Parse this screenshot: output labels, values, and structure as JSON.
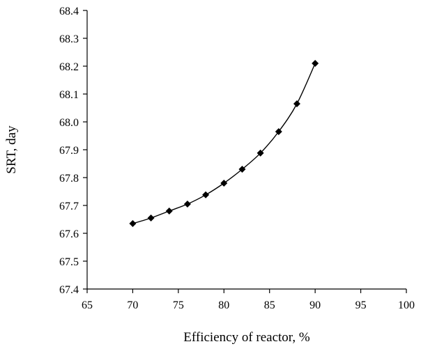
{
  "chart_data": {
    "type": "line",
    "title": "",
    "xlabel": "Efficiency of reactor, %",
    "ylabel": "SRT, day",
    "xlim": [
      65,
      100
    ],
    "ylim": [
      67.4,
      68.4
    ],
    "xticks": [
      65,
      70,
      75,
      80,
      85,
      90,
      95,
      100
    ],
    "yticks": [
      67.4,
      67.5,
      67.6,
      67.7,
      67.8,
      67.9,
      68.0,
      68.1,
      68.2,
      68.3,
      68.4
    ],
    "ytick_labels": [
      "67.4",
      "67.5",
      "67.6",
      "67.7",
      "67.8",
      "67.9",
      "68.0",
      "68.1",
      "68.2",
      "68.3",
      "68.4"
    ],
    "grid": false,
    "legend": "none",
    "marker": "diamond",
    "series": [
      {
        "x": [
          70,
          72,
          74,
          76,
          78,
          80,
          82,
          84,
          86,
          88,
          90
        ],
        "y": [
          67.635,
          67.655,
          67.68,
          67.705,
          67.738,
          67.78,
          67.83,
          67.888,
          67.965,
          68.065,
          68.21
        ]
      }
    ]
  }
}
